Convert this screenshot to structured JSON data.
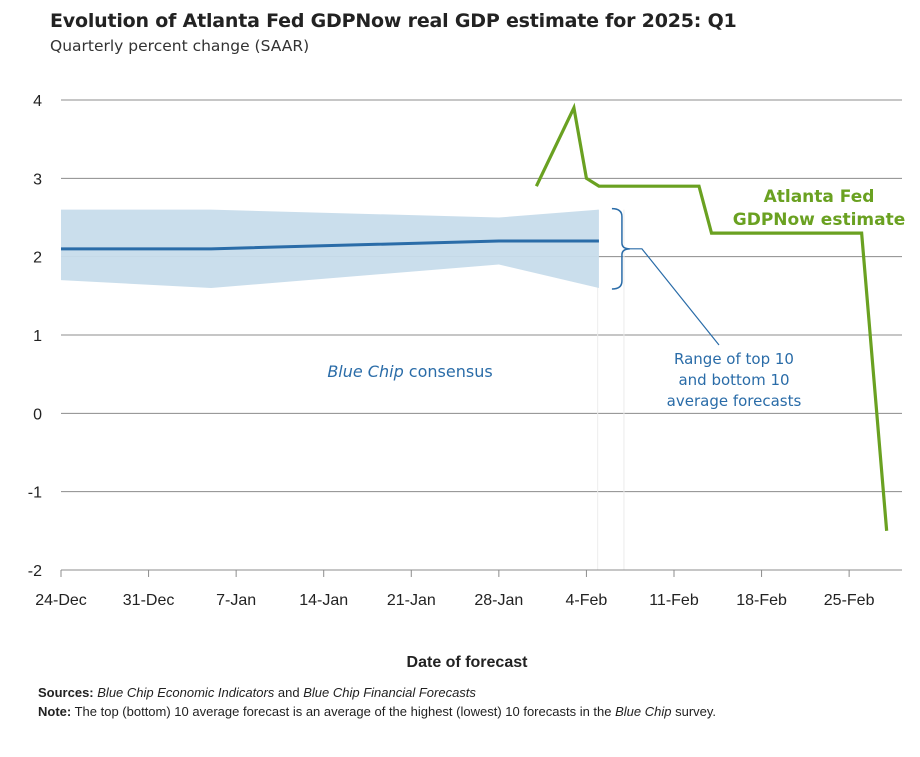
{
  "chart_data": {
    "type": "line",
    "title": "Evolution of Atlanta Fed GDPNow real GDP estimate for 2025: Q1",
    "subtitle": "Quarterly percent change (SAAR)",
    "xlabel": "Date of forecast",
    "ylabel": "",
    "ylim": [
      -2,
      4
    ],
    "yticks": [
      "4",
      "3",
      "2",
      "1",
      "0",
      "-1",
      "-2"
    ],
    "ytick_values": [
      4,
      3,
      2,
      1,
      0,
      -1,
      -2
    ],
    "xticks": [
      "24-Dec",
      "31-Dec",
      "7-Jan",
      "14-Jan",
      "21-Jan",
      "28-Jan",
      "4-Feb",
      "11-Feb",
      "18-Feb",
      "25-Feb"
    ],
    "xtick_days": [
      0,
      7,
      14,
      21,
      28,
      35,
      42,
      49,
      56,
      63
    ],
    "x_units": "days since 24-Dec-2024",
    "xlim": [
      0,
      67
    ],
    "grid": true,
    "series": [
      {
        "name": "Atlanta Fed GDPNow estimate",
        "color": "#6aa121",
        "x": [
          38,
          41,
          42,
          43,
          51,
          52,
          64,
          66
        ],
        "values": [
          2.9,
          3.9,
          3.0,
          2.9,
          2.9,
          2.3,
          2.3,
          -1.5
        ]
      },
      {
        "name": "Blue Chip consensus",
        "color": "#2a6ca8",
        "x": [
          0,
          12,
          35,
          43
        ],
        "values": [
          2.1,
          2.1,
          2.2,
          2.2
        ]
      }
    ],
    "band": {
      "name": "Range of top 10 and bottom 10 average forecasts",
      "color": "#c7dceb",
      "x": [
        0,
        12,
        35,
        43
      ],
      "upper": [
        2.6,
        2.6,
        2.5,
        2.6
      ],
      "lower": [
        1.7,
        1.6,
        1.9,
        1.6
      ]
    },
    "annotations": [
      {
        "name": "gdpnow-label",
        "lines": [
          "Atlanta Fed",
          "GDPNow estimate"
        ],
        "color": "#6aa121"
      },
      {
        "name": "consensus-label",
        "italic": "Blue Chip",
        "rest": " consensus",
        "color": "#2a6ca8"
      },
      {
        "name": "range-label",
        "lines": [
          "Range of top 10",
          "and bottom 10",
          "average forecasts"
        ],
        "color": "#2a6ca8"
      }
    ]
  },
  "footer": {
    "sources_label": "Sources:",
    "sources_part1": "Blue Chip Economic Indicators",
    "sources_and": " and ",
    "sources_part2": "Blue Chip Financial Forecasts",
    "note_label": "Note:",
    "note_text": " The top (bottom) 10 average forecast is an average of the highest (lowest) 10 forecasts in the ",
    "note_italic": "Blue Chip",
    "note_end": " survey."
  }
}
